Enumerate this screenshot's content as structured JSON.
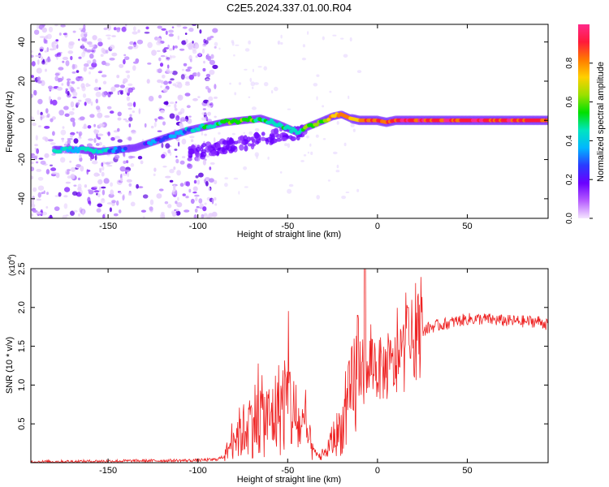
{
  "title": "C2E5.2024.337.01.00.R04",
  "chart_data": [
    {
      "type": "heatmap",
      "xlabel": "Height of straight line (km)",
      "ylabel": "Frequency (Hz)",
      "xlim": [
        -193,
        95
      ],
      "ylim": [
        -50,
        49
      ],
      "x_ticks": [
        -150,
        -100,
        -50,
        0,
        50
      ],
      "y_ticks": [
        -40,
        -20,
        0,
        20,
        40
      ],
      "colorbar": {
        "label": "Normalized spectral amplitude",
        "range": [
          0,
          1
        ],
        "ticks": [
          0.0,
          0.2,
          0.4,
          0.6,
          0.8
        ],
        "colormap": [
          "#f5e6ff",
          "#b65cff",
          "#6a00ff",
          "#2a3bff",
          "#00b7ff",
          "#00e5c0",
          "#00e000",
          "#9be000",
          "#ffd000",
          "#ff7a00",
          "#ff1a3a",
          "#ff2a8a"
        ]
      },
      "ridge": {
        "x": [
          -180,
          -165,
          -155,
          -145,
          -135,
          -105,
          -95,
          -85,
          -75,
          -65,
          -55,
          -45,
          -38,
          -30,
          -25,
          -20,
          -15,
          -10,
          -5,
          0,
          5,
          10,
          20,
          40,
          60,
          80,
          95
        ],
        "y": [
          -15,
          -15,
          -16,
          -15,
          -14,
          -5,
          -3,
          -1,
          0,
          1,
          -2,
          -6,
          -3,
          0,
          2,
          3,
          1,
          0,
          0,
          0,
          -1,
          0,
          0,
          0,
          0,
          0,
          0
        ],
        "amplitude": [
          0.4,
          0.4,
          0.45,
          0.3,
          0.25,
          0.35,
          0.5,
          0.55,
          0.6,
          0.55,
          0.45,
          0.5,
          0.55,
          0.65,
          0.75,
          0.8,
          0.8,
          0.75,
          0.85,
          0.9,
          0.85,
          0.9,
          0.92,
          0.9,
          0.92,
          0.9,
          0.85
        ]
      },
      "noise_region_x": [
        -193,
        -90
      ]
    },
    {
      "type": "line",
      "xlabel": "Height of straight line (km)",
      "ylabel": "SNR (10 * v/v)",
      "scale_label": "(x10",
      "scale_exp": "4",
      "scale_close": ")",
      "xlim": [
        -193,
        95
      ],
      "ylim": [
        0,
        2.5
      ],
      "x_ticks": [
        -150,
        -100,
        -50,
        0,
        50
      ],
      "y_ticks": [
        0.5,
        1.0,
        1.5,
        2.0,
        2.5
      ],
      "series": [
        {
          "color": "#ee2222",
          "x": [
            -193,
            -150,
            -100,
            -90,
            -85,
            -80,
            -75,
            -70,
            -65,
            -60,
            -55,
            -50,
            -45,
            -40,
            -35,
            -30,
            -25,
            -20,
            -15,
            -12,
            -10,
            -8,
            -6,
            -4,
            -2,
            0,
            5,
            10,
            15,
            20,
            25,
            30,
            40,
            50,
            60,
            70,
            80,
            90,
            95
          ],
          "y": [
            0.01,
            0.02,
            0.03,
            0.04,
            0.08,
            0.35,
            0.4,
            0.55,
            0.6,
            0.55,
            0.7,
            0.85,
            0.5,
            0.4,
            0.1,
            0.08,
            0.3,
            0.45,
            0.8,
            1.1,
            1.3,
            1.2,
            1.0,
            1.3,
            1.3,
            1.2,
            1.2,
            1.25,
            1.4,
            1.6,
            1.7,
            1.75,
            1.8,
            1.85,
            1.85,
            1.83,
            1.82,
            1.82,
            1.78
          ]
        }
      ]
    }
  ]
}
